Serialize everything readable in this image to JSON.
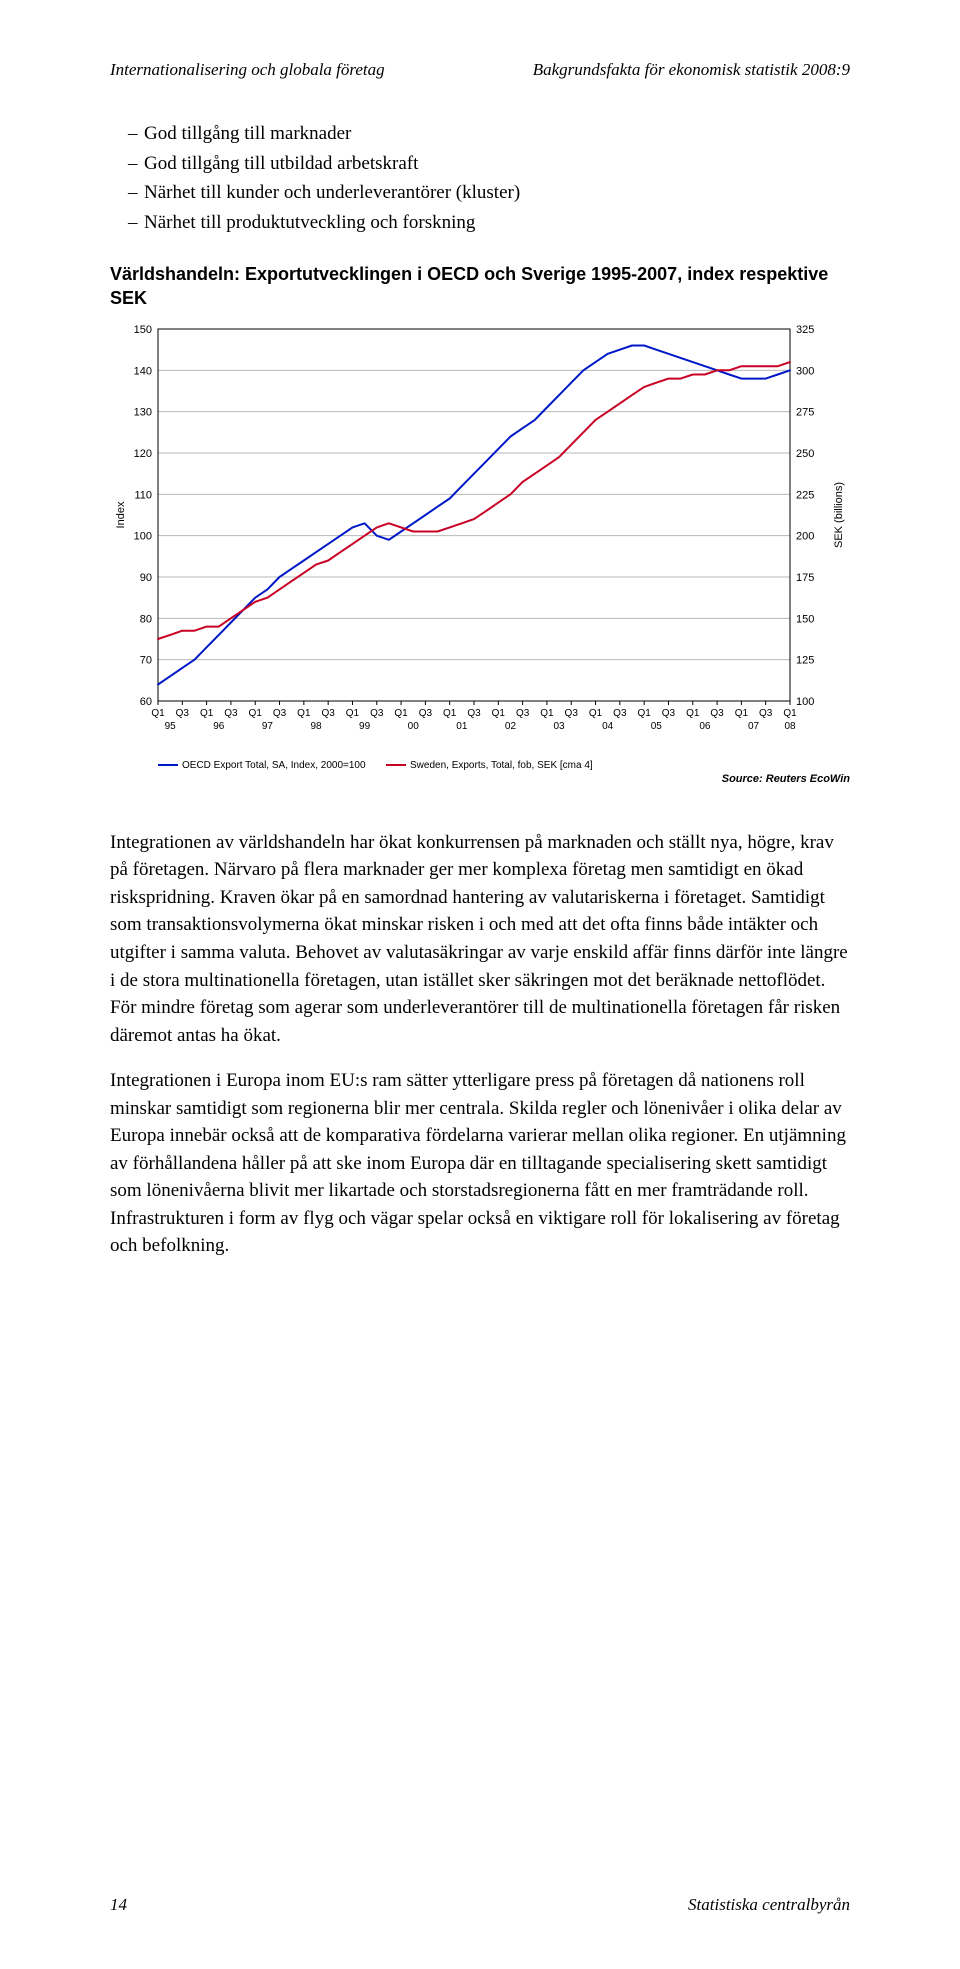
{
  "running_head": {
    "left": "Internationalisering och globala företag",
    "right": "Bakgrundsfakta för ekonomisk statistik 2008:9"
  },
  "bullets": [
    "God tillgång till marknader",
    "God tillgång till utbildad arbetskraft",
    "Närhet till kunder och underleverantörer (kluster)",
    "Närhet till produktutveckling och forskning"
  ],
  "chart": {
    "type": "line",
    "title": "Världshandeln: Exportutvecklingen i OECD och Sverige 1995-2007, index respektive SEK",
    "y_left": {
      "label": "Index",
      "min": 60,
      "max": 150,
      "ticks": [
        60,
        70,
        80,
        90,
        100,
        110,
        120,
        130,
        140,
        150
      ]
    },
    "y_right": {
      "label": "SEK (billions)",
      "min": 100,
      "max": 325,
      "ticks": [
        100,
        125,
        150,
        175,
        200,
        225,
        250,
        275,
        300,
        325
      ]
    },
    "x_labels": [
      "Q1",
      "Q3",
      "Q1",
      "Q3",
      "Q1",
      "Q3",
      "Q1",
      "Q3",
      "Q1",
      "Q3",
      "Q1",
      "Q3",
      "Q1",
      "Q3",
      "Q1",
      "Q3",
      "Q1",
      "Q3",
      "Q1",
      "Q3",
      "Q1",
      "Q3",
      "Q1",
      "Q3",
      "Q1",
      "Q3",
      "Q1"
    ],
    "x_years": [
      "95",
      "96",
      "97",
      "98",
      "99",
      "00",
      "01",
      "02",
      "03",
      "04",
      "05",
      "06",
      "07",
      "08"
    ],
    "grid_color": "#b8b8b8",
    "background_color": "#ffffff",
    "series": [
      {
        "name": "OECD Export Total, SA, Index, 2000=100",
        "axis": "left",
        "color": "#0018c8",
        "line_width": 2,
        "values": [
          64,
          66,
          68,
          70,
          73,
          76,
          79,
          82,
          85,
          87,
          90,
          92,
          94,
          96,
          98,
          100,
          102,
          103,
          100,
          99,
          101,
          103,
          105,
          107,
          109,
          112,
          115,
          118,
          121,
          124,
          126,
          128,
          131,
          134,
          137,
          140,
          142,
          144,
          145,
          146,
          146,
          145,
          144,
          143,
          142,
          141,
          140,
          139,
          138,
          138,
          138,
          139,
          140
        ]
      },
      {
        "name": "Sweden, Exports, Total, fob, SEK [cma 4]",
        "axis": "left",
        "color": "#c80024",
        "line_width": 2,
        "values": [
          75,
          76,
          77,
          77,
          78,
          78,
          80,
          82,
          84,
          85,
          87,
          89,
          91,
          93,
          94,
          96,
          98,
          100,
          102,
          103,
          102,
          101,
          101,
          101,
          102,
          103,
          104,
          106,
          108,
          110,
          113,
          115,
          117,
          119,
          122,
          125,
          128,
          130,
          132,
          134,
          136,
          137,
          138,
          138,
          139,
          139,
          140,
          140,
          141,
          141,
          141,
          141,
          142
        ]
      }
    ],
    "legend": {
      "items": [
        {
          "swatch": "#0018c8",
          "label": "OECD Export Total, SA, Index, 2000=100"
        },
        {
          "swatch": "#c80024",
          "label": "Sweden, Exports, Total, fob, SEK [cma 4]"
        }
      ]
    },
    "source": "Source: Reuters EcoWin"
  },
  "paragraphs": [
    "Integrationen av världshandeln har ökat konkurrensen på marknaden och ställt nya, högre, krav på företagen. Närvaro på flera marknader ger mer komplexa företag men samtidigt en ökad riskspridning. Kraven ökar på en samordnad hantering av valutariskerna i företaget. Samtidigt som transaktionsvolymerna ökat minskar risken i och med att det ofta finns både intäkter och utgifter i samma valuta. Behovet av valutasäkringar av varje enskild affär finns därför inte längre i de stora multinationella företagen, utan istället sker säkringen mot det beräknade nettoflödet. För mindre företag som agerar som underleverantörer till de multinationella företagen får risken däremot antas ha ökat.",
    "Integrationen i Europa inom EU:s ram sätter ytterligare press på företagen då nationens roll minskar samtidigt som regionerna blir mer centrala. Skilda regler och lönenivåer i olika delar av Europa innebär också att de komparativa fördelarna varierar mellan olika regioner. En utjämning av förhållandena håller på att ske inom Europa där en tilltagande specialisering skett samtidigt som lönenivåerna blivit mer likartade och storstadsregionerna fått en mer framträdande roll. Infrastrukturen i form av flyg och vägar spelar också en viktigare roll för lokalisering av företag och befolkning."
  ],
  "footer": {
    "page": "14",
    "publisher": "Statistiska centralbyrån"
  }
}
